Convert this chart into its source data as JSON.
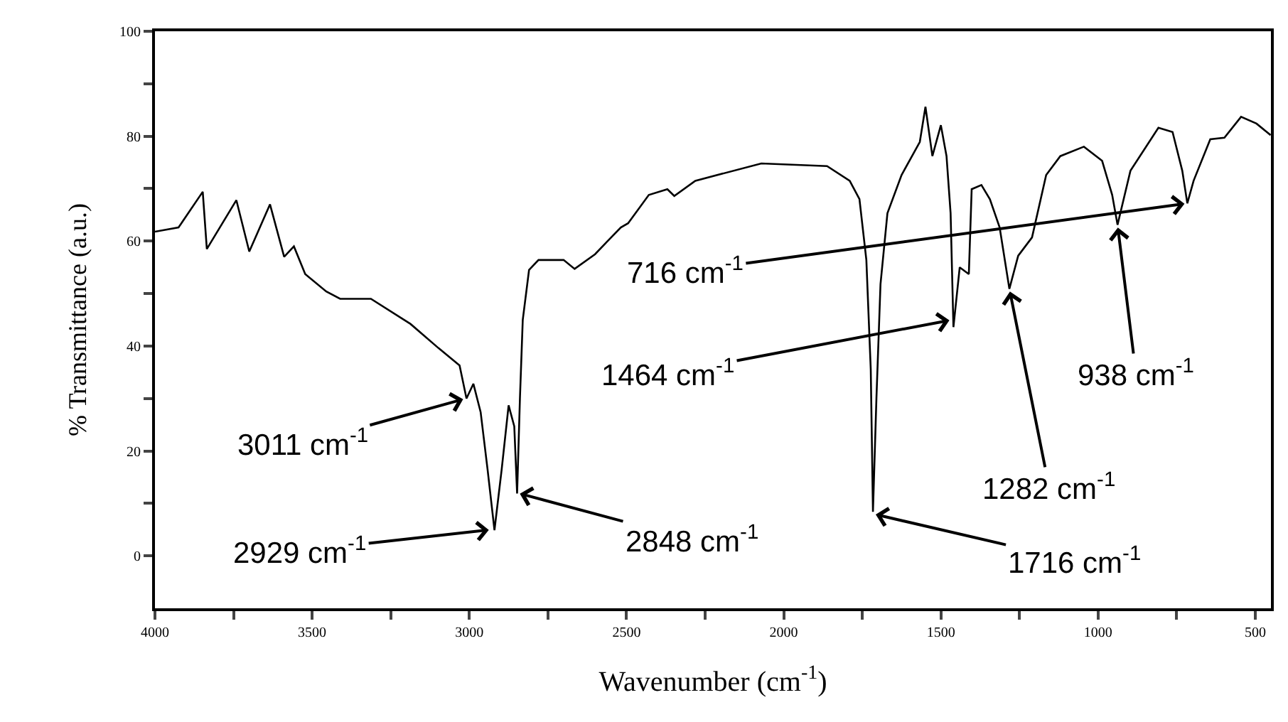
{
  "chart_data": {
    "type": "line",
    "xlabel": "Wavenumber (cm$^{-1}$)",
    "ylabel": "% Transmittance (a.u.)",
    "x": [
      4000,
      3925,
      3848,
      3835,
      3741,
      3700,
      3634,
      3589,
      3558,
      3522,
      3455,
      3411,
      3313,
      3187,
      3098,
      3031,
      3009,
      2987,
      2964,
      2942,
      2920,
      2897,
      2875,
      2857,
      2848,
      2839,
      2830,
      2810,
      2780,
      2700,
      2665,
      2600,
      2562,
      2518,
      2495,
      2429,
      2370,
      2348,
      2281,
      2071,
      1862,
      1790,
      1759,
      1737,
      1723,
      1716,
      1705,
      1692,
      1670,
      1625,
      1567,
      1549,
      1527,
      1500,
      1482,
      1469,
      1460,
      1440,
      1411,
      1402,
      1371,
      1344,
      1313,
      1282,
      1254,
      1210,
      1165,
      1120,
      1045,
      987,
      955,
      938,
      897,
      808,
      763,
      732,
      716,
      696,
      643,
      598,
      545,
      496,
      451
    ],
    "series": [
      {
        "color": "#000000",
        "values": [
          61.8,
          62.6,
          69.4,
          58.5,
          67.8,
          58,
          67,
          57,
          59,
          53.7,
          50.4,
          49,
          49,
          44.2,
          39.6,
          36.3,
          30,
          32.8,
          27.4,
          16.5,
          4.9,
          16.5,
          28.7,
          24.7,
          11.9,
          30,
          45,
          54.5,
          56.4,
          56.4,
          54.7,
          57.5,
          59.9,
          62.6,
          63.4,
          68.8,
          69.9,
          68.6,
          71.5,
          74.8,
          74.3,
          71.5,
          68,
          56.4,
          35.5,
          8.4,
          30,
          51.8,
          65.3,
          72.6,
          78.9,
          85.6,
          76.2,
          82.1,
          76.2,
          65.3,
          43.6,
          55,
          53.7,
          69.9,
          70.7,
          68,
          62.6,
          50.9,
          57.2,
          60.7,
          72.6,
          76.2,
          78,
          75.3,
          68.8,
          63.1,
          73.4,
          81.6,
          80.8,
          73.4,
          67.2,
          71.5,
          79.4,
          79.7,
          83.7,
          82.4,
          80.2
        ]
      }
    ],
    "xlim": [
      4000,
      450
    ],
    "ylim": [
      -10,
      100
    ],
    "xticks": [
      4000,
      {
        "value": 3750,
        "label": null
      },
      3500,
      {
        "value": 3250,
        "label": null
      },
      3000,
      {
        "value": 2750,
        "label": null
      },
      2500,
      {
        "value": 2250,
        "label": null
      },
      2000,
      {
        "value": 1750,
        "label": null
      },
      1500,
      {
        "value": 1250,
        "label": null
      },
      1000,
      {
        "value": 750,
        "label": null
      },
      500
    ],
    "yticks": [
      0,
      {
        "value": 10,
        "label": null
      },
      20,
      {
        "value": 30,
        "label": null
      },
      40,
      {
        "value": 50,
        "label": null
      },
      60,
      {
        "value": 70,
        "label": null
      },
      80,
      {
        "value": 90,
        "label": null
      },
      100
    ],
    "marker": "none",
    "line_style": "solid",
    "annotations": [
      {
        "text": "3011 cm$^{-1}$",
        "x": 3011,
        "y": 30
      },
      {
        "text": "2929 cm$^{-1}$",
        "x": 2929,
        "y": 5
      },
      {
        "text": "2848 cm$^{-1}$",
        "x": 2848,
        "y": 12
      },
      {
        "text": "1716 cm$^{-1}$",
        "x": 1716,
        "y": 8
      },
      {
        "text": "1464 cm$^{-1}$",
        "x": 1464,
        "y": 45
      },
      {
        "text": "716 cm$^{-1}$",
        "x": 716,
        "y": 67.2
      },
      {
        "text": "938 cm$^{-1}$",
        "x": 938,
        "y": 63.1
      },
      {
        "text": "1282 cm$^{-1}$",
        "x": 1282,
        "y": 50.9
      }
    ]
  }
}
